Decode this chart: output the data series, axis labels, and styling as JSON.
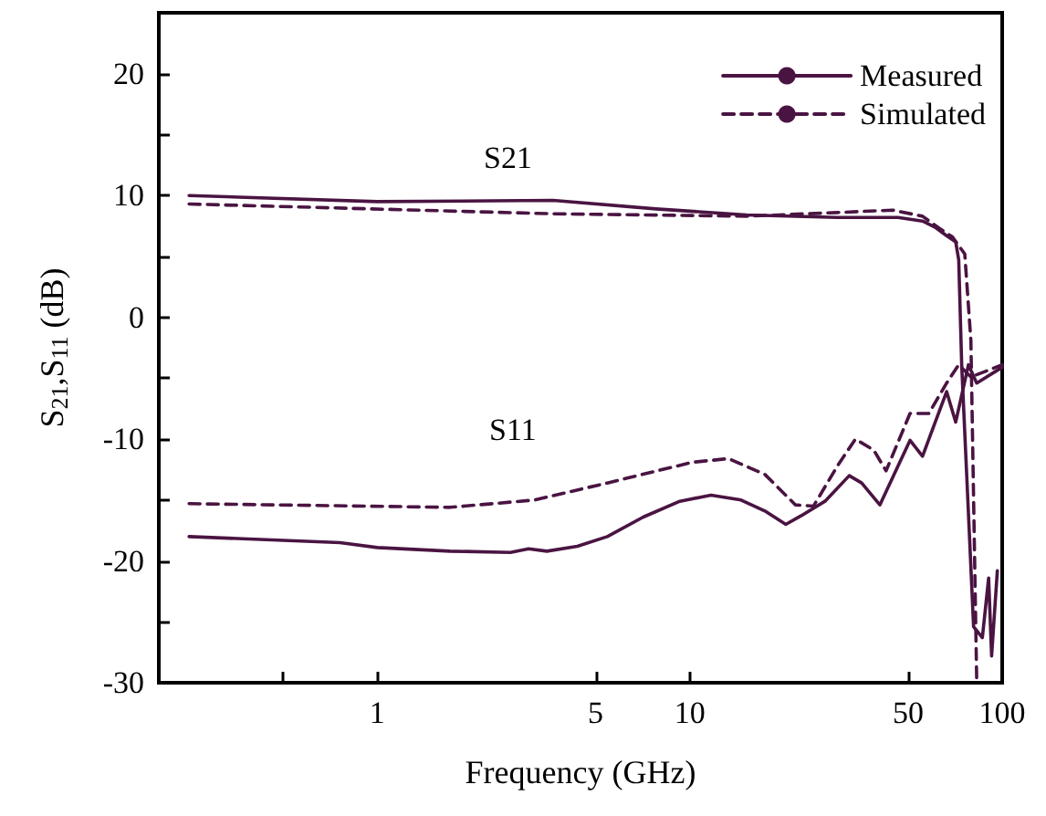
{
  "chart_data": {
    "type": "line",
    "xlabel": "Frequency (GHz)",
    "ylabel": "S$_{21}$,S$_{11}$ (dB)",
    "log": "x",
    "xlim": [
      0.2,
      100
    ],
    "xticks": [
      {
        "value": 0.5,
        "label": null
      },
      1,
      5,
      10,
      50,
      100
    ],
    "ylim": [
      -30,
      25
    ],
    "yticks": [
      -30,
      {
        "value": -25,
        "label": null
      },
      -20,
      {
        "value": -15,
        "label": null
      },
      -10,
      {
        "value": -5,
        "label": null
      },
      0,
      {
        "value": 5,
        "label": null
      },
      10,
      {
        "value": 15,
        "label": null
      },
      20
    ],
    "grid": false,
    "legend": "top right",
    "marker": "none",
    "annotations": [
      "S21",
      "S11"
    ],
    "series": [
      {
        "name": "Measured",
        "color": "#4a1442",
        "line_style": "solid",
        "x": [
          0.25,
          1,
          3.65,
          7.8,
          15.2,
          29.7,
          46.4,
          55.6,
          60.9,
          66.4,
          71,
          72.6,
          74.2,
          81,
          86.4,
          90.5,
          92.5,
          96.5
        ],
        "values": [
          10.0,
          9.5,
          9.6,
          8.9,
          8.4,
          8.2,
          8.2,
          7.9,
          7.4,
          6.7,
          6.2,
          4.7,
          -3.9,
          -25.4,
          -26.3,
          -21.4,
          -27.8,
          -20.8
        ]
      },
      {
        "name": "Simulated",
        "color": "#4a1442",
        "line_style": "dashed",
        "x": [
          0.25,
          3.65,
          15.2,
          29.7,
          44.6,
          55.6,
          63,
          69.3,
          75.9,
          79.4,
          82.9
        ],
        "values": [
          9.3,
          8.5,
          8.3,
          8.6,
          8.8,
          8.3,
          7.3,
          6.6,
          5.2,
          -1.9,
          -30
        ]
      },
      {
        "color": "#4a1442",
        "line_style": "solid",
        "x": [
          0.25,
          0.76,
          1,
          1.71,
          2.67,
          3.05,
          3.49,
          4.37,
          5.45,
          7.1,
          9.3,
          11.7,
          14.6,
          17.4,
          20.3,
          22.7,
          27.1,
          32.4,
          35.5,
          40.6,
          50.7,
          55.6,
          66.4,
          71,
          78,
          82.9,
          100
        ],
        "values": [
          -18.0,
          -18.5,
          -18.9,
          -19.2,
          -19.3,
          -19.0,
          -19.2,
          -18.8,
          -18.0,
          -16.4,
          -15.1,
          -14.6,
          -15.0,
          -15.9,
          -17.0,
          -16.3,
          -15.1,
          -13.0,
          -13.6,
          -15.4,
          -10.1,
          -11.4,
          -6.1,
          -8.6,
          -3.9,
          -5.4,
          -4.1
        ]
      },
      {
        "color": "#4a1442",
        "line_style": "dashed",
        "x": [
          0.25,
          1.71,
          3.19,
          5.45,
          10.2,
          13.3,
          17.4,
          21.8,
          24.9,
          29.7,
          33.9,
          38.8,
          42.5,
          50.7,
          58.2,
          66.4,
          72.6,
          79.4,
          100
        ],
        "values": [
          -15.3,
          -15.6,
          -15.0,
          -13.6,
          -11.9,
          -11.6,
          -12.9,
          -15.4,
          -15.5,
          -12.2,
          -10.0,
          -10.9,
          -12.6,
          -7.9,
          -7.9,
          -5.4,
          -3.9,
          -4.9,
          -3.9
        ]
      }
    ]
  }
}
